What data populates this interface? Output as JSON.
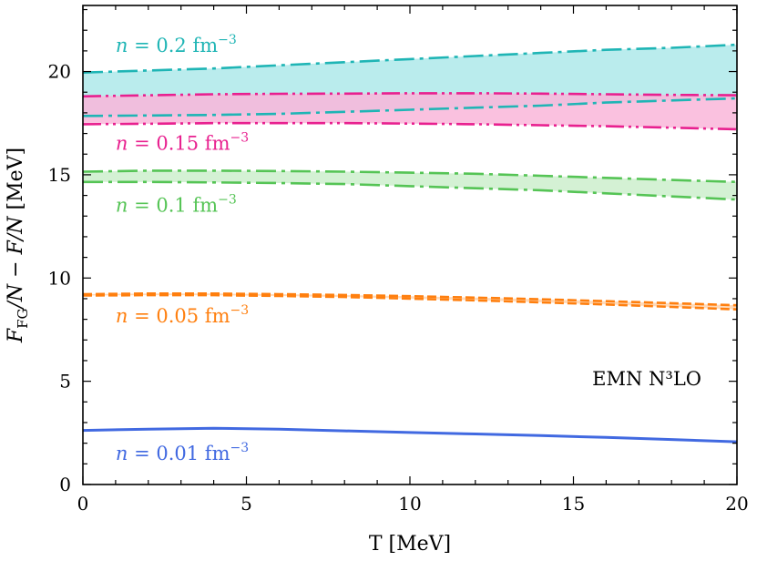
{
  "chart_data": {
    "type": "line",
    "xlabel": "T [MeV]",
    "ylabel": "F_FG/N − F/N [MeV]",
    "xlim": [
      0,
      20
    ],
    "ylim": [
      0,
      23.2
    ],
    "xticks": [
      0,
      5,
      10,
      15,
      20
    ],
    "yticks": [
      0,
      5,
      10,
      15,
      20
    ],
    "grid": false,
    "annotation": "EMN N³LO",
    "series": [
      {
        "name": "n = 0.2 fm⁻³",
        "color": "#1fb5b5",
        "fill": "#aee9ea",
        "x": [
          0,
          2,
          4,
          6,
          8,
          10,
          12,
          14,
          16,
          18,
          20
        ],
        "upper": [
          19.95,
          20.05,
          20.15,
          20.3,
          20.45,
          20.6,
          20.75,
          20.9,
          21.05,
          21.15,
          21.3
        ],
        "lower": [
          17.85,
          17.87,
          17.9,
          17.95,
          18.05,
          18.15,
          18.25,
          18.35,
          18.5,
          18.6,
          18.7
        ]
      },
      {
        "name": "n = 0.15 fm⁻³",
        "color": "#e8208f",
        "fill": "#f9b6d9",
        "x": [
          0,
          2,
          4,
          6,
          8,
          10,
          12,
          14,
          16,
          18,
          20
        ],
        "upper": [
          18.8,
          18.85,
          18.9,
          18.92,
          18.93,
          18.95,
          18.95,
          18.93,
          18.9,
          18.87,
          18.85
        ],
        "lower": [
          17.45,
          17.47,
          17.5,
          17.5,
          17.5,
          17.48,
          17.45,
          17.4,
          17.35,
          17.28,
          17.2
        ]
      },
      {
        "name": "n = 0.1 fm⁻³",
        "color": "#55c455",
        "fill": "#ccefcc",
        "x": [
          0,
          2,
          4,
          6,
          8,
          10,
          12,
          14,
          16,
          18,
          20
        ],
        "upper": [
          15.15,
          15.2,
          15.2,
          15.18,
          15.15,
          15.1,
          15.05,
          14.95,
          14.85,
          14.75,
          14.65
        ],
        "lower": [
          14.65,
          14.65,
          14.63,
          14.6,
          14.55,
          14.45,
          14.35,
          14.25,
          14.1,
          13.95,
          13.8
        ]
      },
      {
        "name": "n = 0.05 fm⁻³",
        "color": "#ff7f0e",
        "fill": "#ffd3ad",
        "x": [
          0,
          2,
          4,
          6,
          8,
          10,
          12,
          14,
          16,
          18,
          20
        ],
        "upper": [
          9.22,
          9.25,
          9.25,
          9.22,
          9.18,
          9.12,
          9.05,
          8.97,
          8.88,
          8.78,
          8.68
        ],
        "lower": [
          9.15,
          9.17,
          9.17,
          9.13,
          9.08,
          9.0,
          8.92,
          8.82,
          8.72,
          8.6,
          8.48
        ]
      },
      {
        "name": "n = 0.01 fm⁻³",
        "color": "#4169e1",
        "x": [
          0,
          2,
          4,
          6,
          8,
          10,
          12,
          14,
          16,
          18,
          20
        ],
        "values": [
          2.62,
          2.68,
          2.72,
          2.68,
          2.6,
          2.52,
          2.45,
          2.37,
          2.28,
          2.18,
          2.07
        ]
      }
    ],
    "labels": [
      {
        "prefix": "n",
        "text": " = 0.2 fm",
        "sup": "−3",
        "color": "#1fb5b5",
        "x": 1.0,
        "y": 20.95
      },
      {
        "prefix": "n",
        "text": " = 0.15 fm",
        "sup": "−3",
        "color": "#e8208f",
        "x": 1.0,
        "y": 16.2
      },
      {
        "prefix": "n",
        "text": " = 0.1 fm",
        "sup": "−3",
        "color": "#55c455",
        "x": 1.0,
        "y": 13.2
      },
      {
        "prefix": "n",
        "text": " = 0.05 fm",
        "sup": "−3",
        "color": "#ff7f0e",
        "x": 1.0,
        "y": 7.85
      },
      {
        "prefix": "n",
        "text": " = 0.01 fm",
        "sup": "−3",
        "color": "#4169e1",
        "x": 1.0,
        "y": 1.2
      }
    ]
  }
}
